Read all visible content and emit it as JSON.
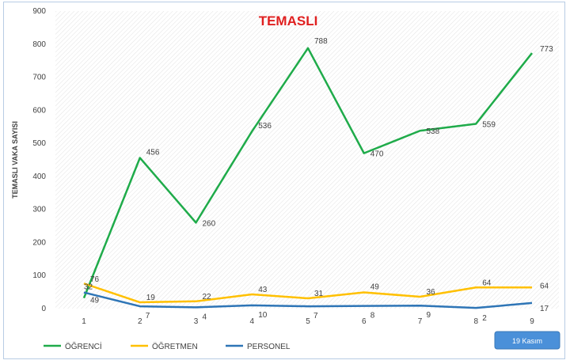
{
  "chart_data": {
    "type": "line",
    "title": "TEMASLI",
    "xlabel": "",
    "ylabel": "TEMASLI VAKA SAYISI",
    "ylim": [
      0,
      900
    ],
    "yticks": [
      0,
      100,
      200,
      300,
      400,
      500,
      600,
      700,
      800,
      900
    ],
    "categories": [
      "1",
      "2",
      "3",
      "4",
      "5",
      "6",
      "7",
      "8",
      "9"
    ],
    "grid": "hatched background",
    "legend_position": "bottom-left",
    "series": [
      {
        "name": "ÖĞRENCİ",
        "color": "#1fab4a",
        "values": [
          32,
          456,
          260,
          536,
          788,
          470,
          538,
          559,
          773
        ]
      },
      {
        "name": "ÖĞRETMEN",
        "color": "#ffc000",
        "values": [
          76,
          19,
          22,
          43,
          31,
          49,
          36,
          64,
          64
        ]
      },
      {
        "name": "PERSONEL",
        "color": "#2e75b6",
        "values": [
          49,
          7,
          4,
          10,
          7,
          8,
          9,
          2,
          17
        ]
      }
    ]
  },
  "badge": {
    "label": "19 Kasım",
    "color": "#4a90d9"
  }
}
